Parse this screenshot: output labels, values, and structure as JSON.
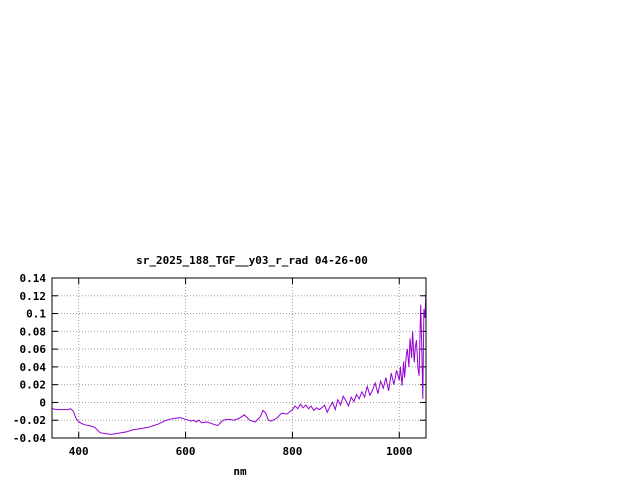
{
  "chart_data": {
    "type": "line",
    "title": "sr_2025_188_TGF__y03_r_rad 04-26-00",
    "xlabel": "nm",
    "ylabel": "",
    "xlim": [
      350,
      1050
    ],
    "ylim": [
      -0.04,
      0.14
    ],
    "x_ticks": [
      400,
      600,
      800,
      1000
    ],
    "x_tick_labels": [
      "400",
      "600",
      "800",
      "1000"
    ],
    "y_ticks": [
      -0.04,
      -0.02,
      0,
      0.02,
      0.04,
      0.06,
      0.08,
      0.1,
      0.12,
      0.14
    ],
    "y_tick_labels": [
      "-0.04",
      "-0.02",
      "0",
      "0.02",
      "0.04",
      "0.06",
      "0.08",
      "0.1",
      "0.12",
      "0.14"
    ],
    "grid": true,
    "series": [
      {
        "color": "#9400d3",
        "x": [
          350,
          360,
          370,
          380,
          385,
          390,
          395,
          400,
          410,
          420,
          430,
          440,
          450,
          460,
          470,
          480,
          490,
          500,
          510,
          520,
          530,
          540,
          550,
          560,
          570,
          580,
          590,
          600,
          610,
          615,
          620,
          625,
          630,
          640,
          650,
          660,
          665,
          670,
          680,
          690,
          700,
          710,
          720,
          730,
          740,
          745,
          750,
          755,
          760,
          770,
          780,
          790,
          800,
          805,
          810,
          815,
          820,
          825,
          830,
          835,
          840,
          845,
          850,
          855,
          860,
          865,
          870,
          875,
          880,
          885,
          890,
          895,
          900,
          905,
          910,
          915,
          920,
          925,
          930,
          935,
          940,
          945,
          950,
          955,
          960,
          965,
          970,
          975,
          980,
          985,
          990,
          995,
          1000,
          1002,
          1005,
          1008,
          1010,
          1013,
          1015,
          1018,
          1020,
          1023,
          1025,
          1028,
          1030,
          1032,
          1035,
          1037,
          1040,
          1042,
          1044,
          1046,
          1048,
          1050
        ],
        "y": [
          -0.007,
          -0.008,
          -0.008,
          -0.008,
          -0.007,
          -0.01,
          -0.018,
          -0.022,
          -0.025,
          -0.026,
          -0.028,
          -0.034,
          -0.035,
          -0.036,
          -0.035,
          -0.034,
          -0.033,
          -0.031,
          -0.03,
          -0.029,
          -0.028,
          -0.026,
          -0.024,
          -0.021,
          -0.019,
          -0.018,
          -0.017,
          -0.019,
          -0.021,
          -0.02,
          -0.022,
          -0.02,
          -0.023,
          -0.022,
          -0.024,
          -0.026,
          -0.023,
          -0.02,
          -0.019,
          -0.02,
          -0.018,
          -0.014,
          -0.02,
          -0.022,
          -0.016,
          -0.009,
          -0.012,
          -0.02,
          -0.021,
          -0.018,
          -0.012,
          -0.013,
          -0.008,
          -0.004,
          -0.007,
          -0.002,
          -0.006,
          -0.003,
          -0.007,
          -0.004,
          -0.009,
          -0.006,
          -0.008,
          -0.006,
          -0.003,
          -0.011,
          -0.005,
          0.0,
          -0.008,
          0.003,
          -0.003,
          0.007,
          0.002,
          -0.004,
          0.006,
          0.001,
          0.009,
          0.004,
          0.012,
          0.006,
          0.018,
          0.008,
          0.014,
          0.022,
          0.01,
          0.024,
          0.016,
          0.028,
          0.013,
          0.033,
          0.02,
          0.036,
          0.025,
          0.04,
          0.019,
          0.046,
          0.028,
          0.052,
          0.06,
          0.04,
          0.072,
          0.05,
          0.08,
          0.045,
          0.062,
          0.07,
          0.038,
          0.03,
          0.11,
          0.065,
          0.004,
          0.105,
          0.095,
          0.125
        ]
      }
    ]
  }
}
